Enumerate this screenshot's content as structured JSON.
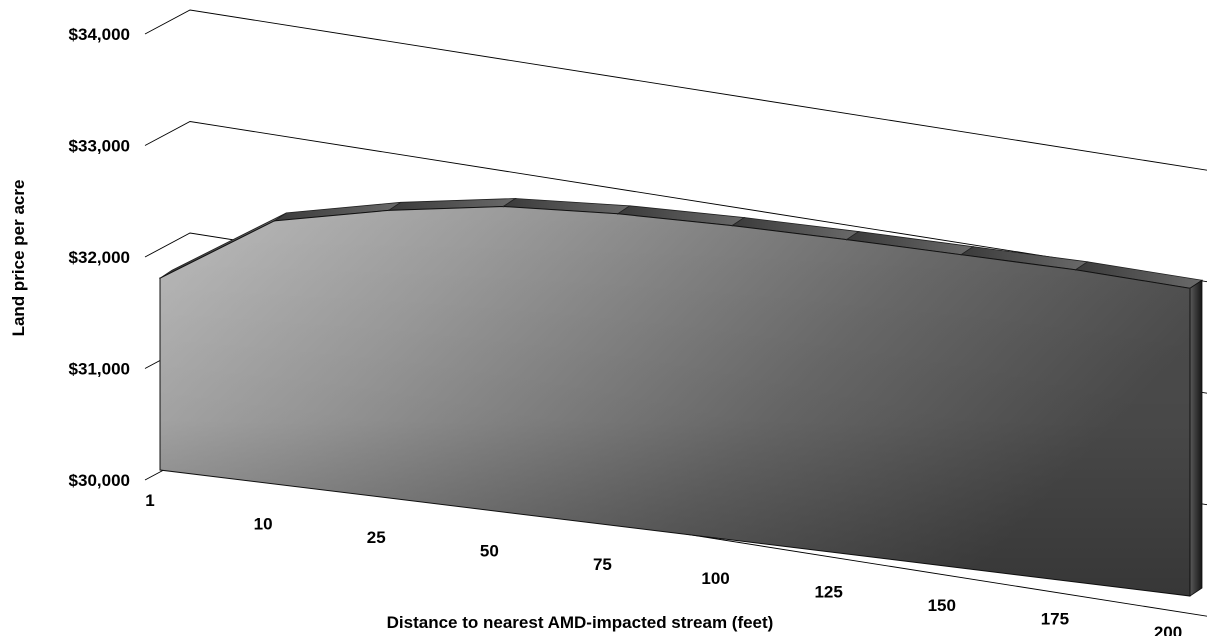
{
  "chart_data": {
    "type": "area",
    "style": "3d",
    "title": "",
    "xlabel": "Distance to nearest AMD-impacted stream (feet)",
    "ylabel": "Land price per acre",
    "categories": [
      "1",
      "10",
      "25",
      "50",
      "75",
      "100",
      "125",
      "150",
      "175",
      "200"
    ],
    "series": [
      {
        "values": [
          31720,
          32360,
          32580,
          32740,
          32800,
          32820,
          32820,
          32810,
          32800,
          32760
        ]
      }
    ],
    "ylim": [
      30000,
      34000
    ],
    "y_ticks": [
      "$30,000",
      "$31,000",
      "$32,000",
      "$33,000",
      "$34,000"
    ],
    "grid": true,
    "legend": "none",
    "colors": {
      "area_light": "#b4b4b4",
      "area_dark": "#4a4a4a",
      "gridline": "#000000"
    }
  }
}
